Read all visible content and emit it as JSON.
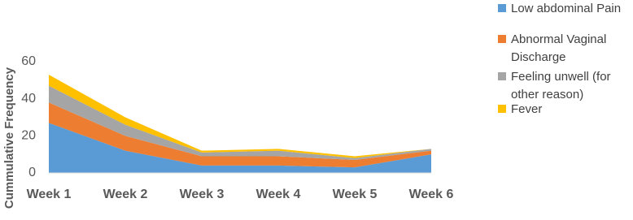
{
  "chart_data": {
    "type": "stacked_area",
    "y_label": "Cummulative Frequency",
    "categories": [
      "Week 1",
      "Week 2",
      "Week 3",
      "Week 4",
      "Week 5",
      "Week 6"
    ],
    "series": [
      {
        "name": "Low abdominal Pain",
        "color": "#5b9bd5",
        "values": [
          27,
          12,
          4,
          4,
          3,
          10
        ]
      },
      {
        "name": "Abnormal Vaginal Discharge",
        "color": "#ed7d31",
        "values": [
          11,
          8,
          5,
          5,
          4,
          2
        ]
      },
      {
        "name": "Feeling unwell (for other reason)",
        "color": "#a5a5a5",
        "values": [
          9,
          6,
          2,
          3,
          1,
          1
        ]
      },
      {
        "name": "Fever",
        "color": "#ffc000",
        "values": [
          6,
          4,
          1,
          1,
          1,
          0
        ]
      }
    ],
    "ylim": [
      0,
      60
    ],
    "yticks": [
      0,
      20,
      40,
      60
    ]
  }
}
